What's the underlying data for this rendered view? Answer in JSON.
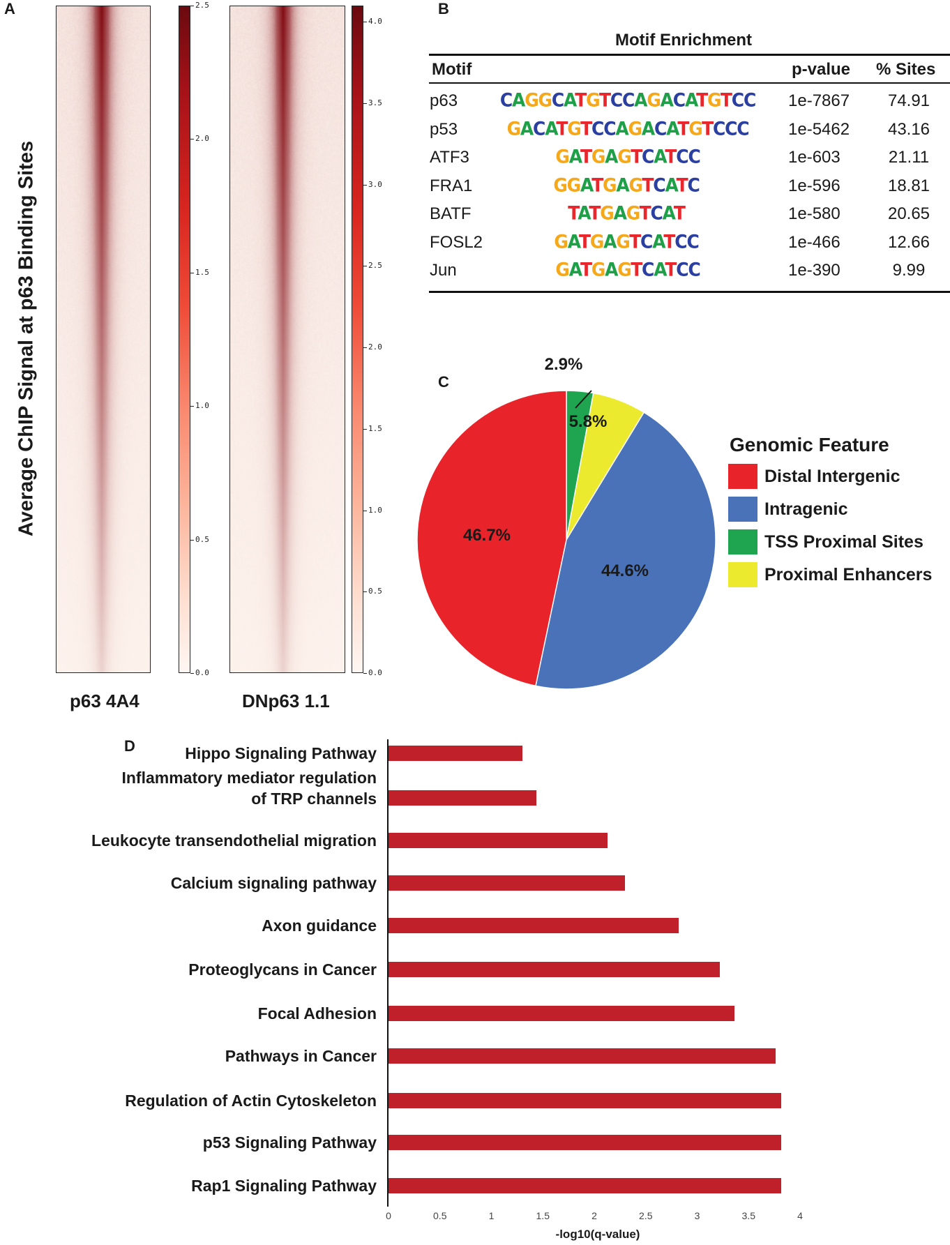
{
  "panel_labels": {
    "a": "A",
    "b": "B",
    "c": "C",
    "d": "D"
  },
  "heatmap_panel": {
    "y_title": "Average ChIP Signal at p63 Binding Sites",
    "heatmaps": [
      {
        "label": "p63 4A4",
        "colorbar_max": 2.5,
        "colorbar_ticks": [
          "2.5",
          "2.0",
          "1.5",
          "1.0",
          "0.5",
          "0.0"
        ]
      },
      {
        "label": "DNp63 1.1",
        "colorbar_max": 4.1,
        "colorbar_ticks": [
          "4.0",
          "3.5",
          "3.0",
          "2.5",
          "2.0",
          "1.5",
          "1.0",
          "0.5",
          "0.0"
        ]
      }
    ],
    "colors": {
      "dark": "#6a0a10",
      "mid": "#d8241f",
      "light": "#fff6f2"
    }
  },
  "motif_table": {
    "title": "Motif Enrichment",
    "headers": {
      "motif": "Motif",
      "pvalue": "p-value",
      "sites": "% Sites"
    },
    "rows": [
      {
        "name": "p63",
        "logo": "CAGGCATGTCCAGACATGTCC",
        "pvalue": "1e-7867",
        "sites": "74.91"
      },
      {
        "name": "p53",
        "logo": "GACATGTCCAGACATGTCCC",
        "pvalue": "1e-5462",
        "sites": "43.16"
      },
      {
        "name": "ATF3",
        "logo": "GATGAGTCATCC",
        "pvalue": "1e-603",
        "sites": "21.11"
      },
      {
        "name": "FRA1",
        "logo": "GGATGAGTCATC",
        "pvalue": "1e-596",
        "sites": "18.81"
      },
      {
        "name": "BATF",
        "logo": "TATGAGTCAT",
        "pvalue": "1e-580",
        "sites": "20.65"
      },
      {
        "name": "FOSL2",
        "logo": "GATGAGTCATCC",
        "pvalue": "1e-466",
        "sites": "12.66"
      },
      {
        "name": "Jun",
        "logo": "GATGAGTCATCC",
        "pvalue": "1e-390",
        "sites": "9.99"
      }
    ],
    "base_colors": {
      "A": "#1fa048",
      "C": "#2a3fa0",
      "G": "#f5a81a",
      "T": "#e8262b"
    }
  },
  "chart_data": [
    {
      "type": "pie",
      "title": "Genomic Feature",
      "slices": [
        {
          "label": "TSS Proximal Sites",
          "value": 2.9,
          "pct_label": "2.9%",
          "color": "#1fa54f"
        },
        {
          "label": "Proximal Enhancers",
          "value": 5.8,
          "pct_label": "5.8%",
          "color": "#ecea2f"
        },
        {
          "label": "Intragenic",
          "value": 44.6,
          "pct_label": "44.6%",
          "color": "#4a72b8"
        },
        {
          "label": "Distal Intergenic",
          "value": 46.7,
          "pct_label": "46.7%",
          "color": "#e8232a"
        }
      ],
      "legend_order": [
        "Distal Intergenic",
        "Intragenic",
        "TSS Proximal Sites",
        "Proximal Enhancers"
      ],
      "legend_position": "right"
    },
    {
      "type": "bar",
      "orientation": "horizontal",
      "categories": [
        "Hippo Signaling Pathway",
        "Inflammatory mediator regulation\nof TRP channels",
        "Leukocyte transendothelial migration",
        "Calcium signaling pathway",
        "Axon guidance",
        "Proteoglycans in Cancer",
        "Focal Adhesion",
        "Pathways in Cancer",
        "Regulation of Actin Cytoskeleton",
        "p53 Signaling Pathway",
        "Rap1 Signaling Pathway"
      ],
      "values": [
        1.3,
        1.44,
        2.13,
        2.3,
        2.82,
        3.22,
        3.36,
        3.76,
        3.82,
        3.82,
        3.82
      ],
      "xlabel": "-log10(q-value)",
      "ylabel": "",
      "xlim": [
        0,
        4
      ],
      "xticks": [
        "0",
        "0.5",
        "1",
        "1.5",
        "2",
        "2.5",
        "3",
        "3.5",
        "4"
      ],
      "bar_color": "#c0202a"
    }
  ]
}
